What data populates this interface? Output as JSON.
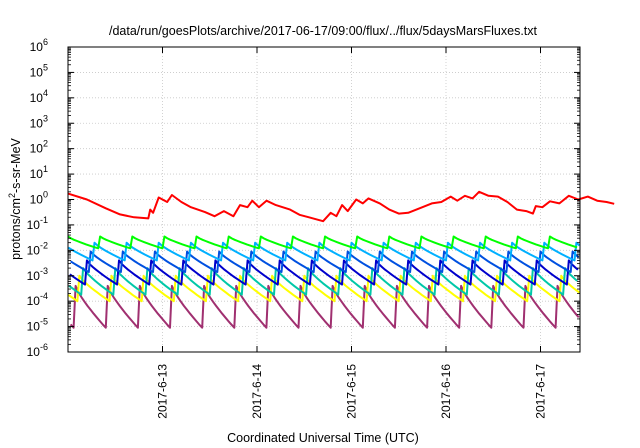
{
  "chart_data": {
    "type": "line",
    "title": "/data/run/goesPlots/archive/2017-06-17/09:00/flux/../flux/5daysMarsFluxes.txt",
    "xlabel": "Coordinated Universal Time (UTC)",
    "ylabel": {
      "pre": "protons/cm",
      "sup": "2",
      "post": "-s-sr-MeV"
    },
    "yscale": "log",
    "ylim_exp": [
      -6,
      6
    ],
    "y_ticks": [
      {
        "base": "10",
        "exp": "6"
      },
      {
        "base": "10",
        "exp": "5"
      },
      {
        "base": "10",
        "exp": "4"
      },
      {
        "base": "10",
        "exp": "3"
      },
      {
        "base": "10",
        "exp": "2"
      },
      {
        "base": "10",
        "exp": "1"
      },
      {
        "base": "10",
        "exp": "0"
      },
      {
        "base": "10",
        "exp": "-1"
      },
      {
        "base": "10",
        "exp": "-2"
      },
      {
        "base": "10",
        "exp": "-3"
      },
      {
        "base": "10",
        "exp": "-4"
      },
      {
        "base": "10",
        "exp": "-5"
      },
      {
        "base": "10",
        "exp": "-6"
      }
    ],
    "x_range_days": [
      "2017-06-12 01:00",
      "2017-06-17 10:00"
    ],
    "x_ticks": [
      "2017-6-13",
      "2017-6-14",
      "2017-6-15",
      "2017-6-16",
      "2017-6-17"
    ],
    "grid": true,
    "legend": "none",
    "series": [
      {
        "color": "#ff0000",
        "kind": "smooth",
        "points": [
          [
            0.0,
            1.7
          ],
          [
            0.2,
            1.0
          ],
          [
            0.4,
            0.45
          ],
          [
            0.55,
            0.26
          ],
          [
            0.7,
            0.2
          ],
          [
            0.85,
            0.18
          ],
          [
            0.87,
            0.4
          ],
          [
            0.9,
            0.3
          ],
          [
            0.96,
            1.2
          ],
          [
            1.05,
            0.8
          ],
          [
            1.1,
            1.5
          ],
          [
            1.2,
            0.8
          ],
          [
            1.3,
            0.5
          ],
          [
            1.45,
            0.32
          ],
          [
            1.55,
            0.22
          ],
          [
            1.65,
            0.35
          ],
          [
            1.75,
            0.22
          ],
          [
            1.82,
            0.6
          ],
          [
            1.9,
            0.5
          ],
          [
            1.95,
            0.9
          ],
          [
            2.02,
            0.5
          ],
          [
            2.1,
            0.9
          ],
          [
            2.2,
            0.6
          ],
          [
            2.35,
            0.4
          ],
          [
            2.45,
            0.25
          ],
          [
            2.55,
            0.2
          ],
          [
            2.7,
            0.14
          ],
          [
            2.78,
            0.3
          ],
          [
            2.84,
            0.22
          ],
          [
            2.9,
            0.6
          ],
          [
            2.96,
            0.35
          ],
          [
            3.05,
            1.0
          ],
          [
            3.12,
            0.7
          ],
          [
            3.18,
            1.1
          ],
          [
            3.3,
            0.7
          ],
          [
            3.4,
            0.4
          ],
          [
            3.5,
            0.28
          ],
          [
            3.6,
            0.3
          ],
          [
            3.75,
            0.5
          ],
          [
            3.85,
            0.7
          ],
          [
            3.95,
            0.8
          ],
          [
            4.05,
            1.3
          ],
          [
            4.12,
            0.9
          ],
          [
            4.2,
            1.4
          ],
          [
            4.28,
            1.1
          ],
          [
            4.35,
            2.0
          ],
          [
            4.45,
            1.4
          ],
          [
            4.55,
            1.3
          ],
          [
            4.65,
            0.8
          ],
          [
            4.75,
            0.4
          ],
          [
            4.85,
            0.35
          ],
          [
            4.92,
            0.28
          ],
          [
            4.95,
            0.55
          ],
          [
            5.02,
            0.5
          ],
          [
            5.1,
            0.85
          ],
          [
            5.2,
            0.7
          ],
          [
            5.3,
            1.4
          ],
          [
            5.4,
            1.0
          ],
          [
            5.5,
            1.3
          ],
          [
            5.6,
            0.9
          ],
          [
            5.7,
            0.8
          ],
          [
            5.78,
            0.68
          ]
        ]
      },
      {
        "color": "#00ff00",
        "kind": "saw",
        "high": 0.035,
        "low": 0.012,
        "phase": 0.0
      },
      {
        "color": "#00b0ff",
        "kind": "saw",
        "high": 0.02,
        "low": 0.004,
        "phase": 0.06
      },
      {
        "color": "#0050e0",
        "kind": "saw",
        "high": 0.009,
        "low": 0.0014,
        "phase": 0.1
      },
      {
        "color": "#0000cc",
        "kind": "saw",
        "high": 0.004,
        "low": 0.00045,
        "phase": 0.14
      },
      {
        "color": "#00c8a8",
        "kind": "saw",
        "high": 0.002,
        "low": 0.00018,
        "phase": 0.18
      },
      {
        "color": "#ffff00",
        "kind": "saw",
        "high": 0.001,
        "low": 0.0001,
        "phase": 0.22
      },
      {
        "color": "#a03070",
        "kind": "saw",
        "high": 0.0004,
        "low": 9e-06,
        "phase": 0.26
      }
    ]
  }
}
